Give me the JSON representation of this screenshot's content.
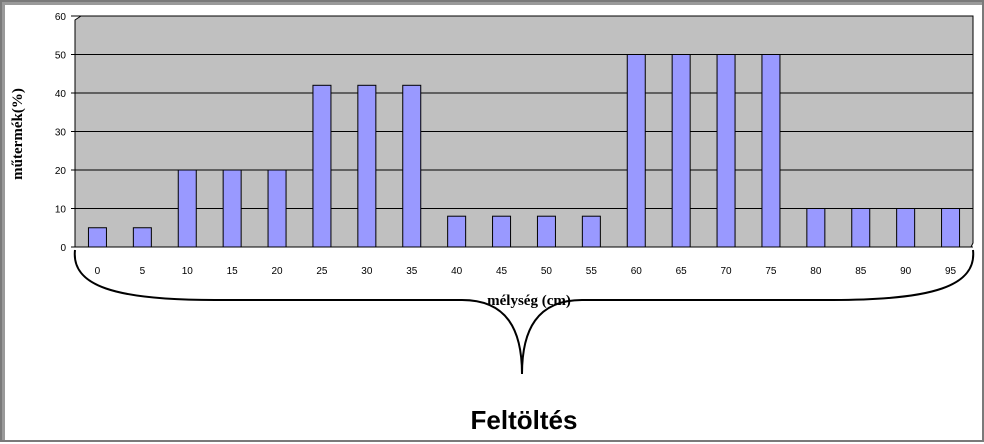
{
  "chart_data": {
    "type": "bar",
    "categories": [
      "0",
      "5",
      "10",
      "15",
      "20",
      "25",
      "30",
      "35",
      "40",
      "45",
      "50",
      "55",
      "60",
      "65",
      "70",
      "75",
      "80",
      "85",
      "90",
      "95"
    ],
    "values": [
      5,
      5,
      20,
      20,
      20,
      42,
      42,
      42,
      8,
      8,
      8,
      8,
      50,
      50,
      50,
      50,
      10,
      10,
      10,
      10
    ],
    "ylim": [
      0,
      60
    ],
    "yticks": [
      0,
      10,
      20,
      30,
      40,
      50,
      60
    ],
    "xlabel": "mélység (cm)",
    "ylabel": "műtermék(%)",
    "grid": true,
    "legend": "none"
  },
  "caption": "Feltöltés",
  "colors": {
    "plot_bg": "#c0c0c0",
    "bar_fill": "#9999ff",
    "bar_stroke": "#000000",
    "grid": "#000000"
  }
}
